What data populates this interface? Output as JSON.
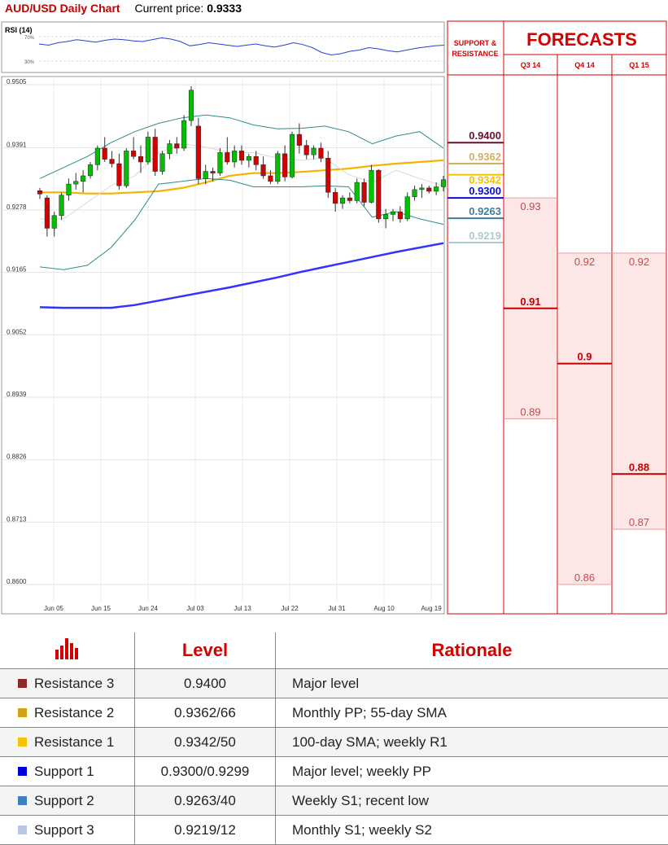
{
  "header": {
    "title": "AUD/USD Daily Chart",
    "price_label": "Current price:",
    "price_value": "0.9333"
  },
  "chart_data": [
    {
      "type": "line",
      "title": "RSI (14)",
      "ylim": [
        0,
        100
      ],
      "ticks": [
        "70%",
        "30%"
      ],
      "tick_values": [
        70,
        30
      ],
      "values": [
        58,
        56,
        60,
        62,
        65,
        63,
        61,
        64,
        66,
        65,
        63,
        62,
        65,
        68,
        66,
        62,
        55,
        57,
        60,
        58,
        56,
        54,
        56,
        58,
        55,
        53,
        56,
        60,
        57,
        52,
        44,
        40,
        42,
        46,
        48,
        52,
        50,
        47,
        45,
        48,
        51,
        53,
        55,
        56
      ]
    },
    {
      "type": "candlestick",
      "ylim": [
        0.8585,
        0.9512
      ],
      "yticks": [
        "0.9505",
        "0.9391",
        "0.9278",
        "0.9165",
        "0.9052",
        "0.8939",
        "0.8826",
        "0.8713",
        "0.8600"
      ],
      "ytick_values": [
        0.9505,
        0.9391,
        0.9278,
        0.9165,
        0.9052,
        0.8939,
        0.8826,
        0.8713,
        0.86
      ],
      "xticks": [
        "Jun 05",
        "Jun 15",
        "Jun 24",
        "Jul 03",
        "Jul 13",
        "Jul 22",
        "Jul 31",
        "Aug 10",
        "Aug 19"
      ],
      "candles": [
        [
          0.9313,
          0.9318,
          0.9298,
          0.9307
        ],
        [
          0.93,
          0.9305,
          0.923,
          0.9245
        ],
        [
          0.9245,
          0.9275,
          0.923,
          0.9268
        ],
        [
          0.9268,
          0.931,
          0.926,
          0.9305
        ],
        [
          0.9305,
          0.9335,
          0.9295,
          0.9325
        ],
        [
          0.9325,
          0.9345,
          0.9315,
          0.933
        ],
        [
          0.933,
          0.935,
          0.931,
          0.934
        ],
        [
          0.934,
          0.9365,
          0.9335,
          0.936
        ],
        [
          0.936,
          0.9395,
          0.935,
          0.939
        ],
        [
          0.939,
          0.941,
          0.9365,
          0.937
        ],
        [
          0.937,
          0.9385,
          0.9355,
          0.9362
        ],
        [
          0.9362,
          0.938,
          0.9315,
          0.9322
        ],
        [
          0.9322,
          0.939,
          0.9318,
          0.9385
        ],
        [
          0.9385,
          0.941,
          0.937,
          0.9375
        ],
        [
          0.9375,
          0.9395,
          0.9345,
          0.9365
        ],
        [
          0.9365,
          0.942,
          0.936,
          0.941
        ],
        [
          0.941,
          0.9425,
          0.934,
          0.9348
        ],
        [
          0.9348,
          0.9385,
          0.9342,
          0.938
        ],
        [
          0.938,
          0.9405,
          0.937,
          0.9398
        ],
        [
          0.9398,
          0.941,
          0.938,
          0.939
        ],
        [
          0.939,
          0.945,
          0.9385,
          0.944
        ],
        [
          0.944,
          0.9502,
          0.943,
          0.9495
        ],
        [
          0.943,
          0.9445,
          0.9325,
          0.9335
        ],
        [
          0.9335,
          0.936,
          0.9325,
          0.9348
        ],
        [
          0.9348,
          0.9355,
          0.933,
          0.9345
        ],
        [
          0.9345,
          0.939,
          0.934,
          0.9382
        ],
        [
          0.9382,
          0.941,
          0.936,
          0.9365
        ],
        [
          0.9365,
          0.9395,
          0.9355,
          0.9385
        ],
        [
          0.9385,
          0.9395,
          0.936,
          0.9368
        ],
        [
          0.9368,
          0.938,
          0.9355,
          0.9375
        ],
        [
          0.9375,
          0.9385,
          0.935,
          0.936
        ],
        [
          0.936,
          0.9375,
          0.9335,
          0.934
        ],
        [
          0.934,
          0.935,
          0.9325,
          0.933
        ],
        [
          0.933,
          0.9385,
          0.9325,
          0.938
        ],
        [
          0.938,
          0.9395,
          0.933,
          0.9338
        ],
        [
          0.9338,
          0.942,
          0.9335,
          0.9415
        ],
        [
          0.9415,
          0.9435,
          0.938,
          0.9395
        ],
        [
          0.9395,
          0.9405,
          0.937,
          0.9378
        ],
        [
          0.9378,
          0.9395,
          0.937,
          0.939
        ],
        [
          0.939,
          0.94,
          0.9365,
          0.9372
        ],
        [
          0.9372,
          0.9385,
          0.93,
          0.931
        ],
        [
          0.931,
          0.9318,
          0.9275,
          0.929
        ],
        [
          0.929,
          0.9305,
          0.928,
          0.93
        ],
        [
          0.93,
          0.931,
          0.929,
          0.9295
        ],
        [
          0.9295,
          0.9335,
          0.929,
          0.9328
        ],
        [
          0.9328,
          0.9335,
          0.9285,
          0.9292
        ],
        [
          0.9292,
          0.936,
          0.929,
          0.935
        ],
        [
          0.935,
          0.9352,
          0.9255,
          0.9262
        ],
        [
          0.9262,
          0.928,
          0.9245,
          0.927
        ],
        [
          0.927,
          0.928,
          0.9258,
          0.9275
        ],
        [
          0.9275,
          0.9285,
          0.9255,
          0.9262
        ],
        [
          0.9262,
          0.931,
          0.9258,
          0.9302
        ],
        [
          0.9302,
          0.9322,
          0.9295,
          0.9315
        ],
        [
          0.9315,
          0.9325,
          0.93,
          0.9318
        ],
        [
          0.9318,
          0.9322,
          0.9308,
          0.9312
        ],
        [
          0.9312,
          0.9328,
          0.9305,
          0.932
        ],
        [
          0.932,
          0.934,
          0.9312,
          0.9333
        ]
      ],
      "overlays": [
        {
          "color": "#f5b300",
          "values": [
            0.931,
            0.931,
            0.9308,
            0.9308,
            0.931,
            0.9312,
            0.9318,
            0.9328,
            0.934,
            0.9345,
            0.9345,
            0.9347,
            0.935,
            0.9353,
            0.9358,
            0.9362,
            0.9365,
            0.9368
          ]
        },
        {
          "color": "#3333ff",
          "values": [
            0.9102,
            0.9101,
            0.9101,
            0.9101,
            0.9106,
            0.9114,
            0.9122,
            0.913,
            0.9138,
            0.9147,
            0.9156,
            0.9166,
            0.9175,
            0.9184,
            0.9193,
            0.9202,
            0.921,
            0.9218
          ]
        },
        {
          "color": "#2e8b8b",
          "values": [
            0.9335,
            0.9355,
            0.9375,
            0.94,
            0.942,
            0.9435,
            0.9445,
            0.945,
            0.9445,
            0.9432,
            0.9425,
            0.9426,
            0.943,
            0.942,
            0.9398,
            0.9412,
            0.942,
            0.939
          ]
        },
        {
          "color": "#2e8b8b",
          "values": [
            0.9175,
            0.917,
            0.9178,
            0.921,
            0.926,
            0.9325,
            0.933,
            0.9335,
            0.9332,
            0.932,
            0.932,
            0.932,
            0.9322,
            0.932,
            0.9265,
            0.9275,
            0.9262,
            0.9252
          ]
        },
        {
          "color": "#d8d8d8",
          "values": [
            0.9262,
            0.9262,
            0.9292,
            0.9322,
            0.934,
            0.9382,
            0.9398,
            0.9392,
            0.9382,
            0.9382,
            0.9372,
            0.9368,
            0.9372,
            0.9342,
            0.9328,
            0.935,
            0.9335,
            0.9322
          ]
        }
      ]
    }
  ],
  "levels_panel": {
    "title": "SUPPORT & RESISTANCE",
    "levels": [
      {
        "value": 0.94,
        "label": "0.9400",
        "color": "#6b0f2a"
      },
      {
        "value": 0.9362,
        "label": "0.9362",
        "color": "#d6ad62"
      },
      {
        "value": 0.9342,
        "label": "0.9342",
        "color": "#f5c400"
      },
      {
        "value": 0.93,
        "label": "0.9300",
        "color": "#0d0dd6"
      },
      {
        "value": 0.9263,
        "label": "0.9263",
        "color": "#3e7c9c"
      },
      {
        "value": 0.9219,
        "label": "0.9219",
        "color": "#a9cbd4"
      }
    ]
  },
  "forecasts": {
    "title": "FORECASTS",
    "columns": [
      {
        "label": "Q3 14",
        "high": 0.93,
        "high_label": "0.93",
        "mid": 0.91,
        "mid_label": "0.91",
        "low": 0.89,
        "low_label": "0.89"
      },
      {
        "label": "Q4 14",
        "high": 0.92,
        "high_label": "0.92",
        "mid": 0.9,
        "mid_label": "0.9",
        "low": 0.86,
        "low_label": "0.86"
      },
      {
        "label": "Q1 15",
        "high": 0.92,
        "high_label": "0.92",
        "mid": 0.88,
        "mid_label": "0.88",
        "low": 0.87,
        "low_label": "0.87"
      }
    ]
  },
  "table": {
    "header_level": "Level",
    "header_rationale": "Rationale",
    "header_icon": "bar-chart-icon",
    "rows": [
      {
        "name": "Resistance 3",
        "level": "0.9400",
        "rationale": "Major level",
        "color": "#8b2a2a"
      },
      {
        "name": "Resistance 2",
        "level": "0.9362/66",
        "rationale": "Monthly PP; 55-day SMA",
        "color": "#d4a017"
      },
      {
        "name": "Resistance 1",
        "level": "0.9342/50",
        "rationale": "100-day SMA; weekly R1",
        "color": "#f5c400"
      },
      {
        "name": "Support 1",
        "level": "0.9300/0.9299",
        "rationale": "Major level; weekly PP",
        "color": "#0000dd"
      },
      {
        "name": "Support 2",
        "level": "0.9263/40",
        "rationale": "Weekly S1; recent low",
        "color": "#3f7fbf"
      },
      {
        "name": "Support 3",
        "level": "0.9219/12",
        "rationale": "Monthly S1; weekly S2",
        "color": "#b5c9e3"
      }
    ]
  }
}
